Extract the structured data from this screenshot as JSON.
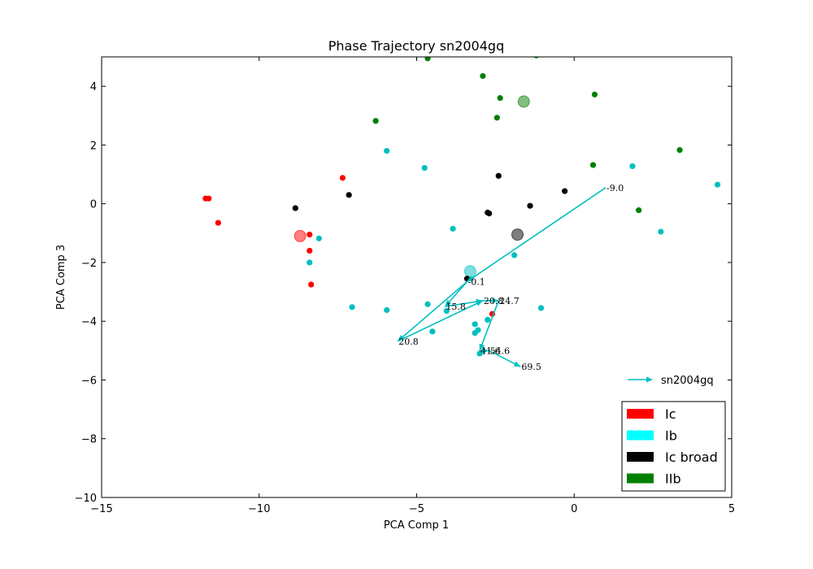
{
  "chart_data": {
    "type": "scatter",
    "title": "Phase Trajectory sn2004gq",
    "xlabel": "PCA Comp 1",
    "ylabel": "PCA Comp 3",
    "xlim": [
      -15,
      5
    ],
    "ylim": [
      -10,
      5
    ],
    "xticks": [
      -15,
      -10,
      -5,
      0,
      5
    ],
    "yticks": [
      -10,
      -8,
      -6,
      -4,
      -2,
      0,
      2,
      4
    ],
    "xtick_labels": [
      "−15",
      "−10",
      "−5",
      "0",
      "5"
    ],
    "ytick_labels": [
      "−10",
      "−8",
      "−6",
      "−4",
      "−2",
      "0",
      "2",
      "4"
    ],
    "grid": false,
    "series": [
      {
        "name": "Ic",
        "color": "#ff0000",
        "points": [
          [
            -11.7,
            0.18
          ],
          [
            -11.6,
            0.18
          ],
          [
            -11.3,
            -0.65
          ],
          [
            -7.35,
            0.88
          ],
          [
            -8.4,
            -1.05
          ],
          [
            -8.4,
            -1.6
          ],
          [
            -8.35,
            -2.75
          ],
          [
            -2.6,
            -3.75
          ]
        ],
        "centroid": [
          -8.7,
          -1.1
        ]
      },
      {
        "name": "Ib",
        "color": "#00bfbf",
        "points": [
          [
            -5.95,
            1.8
          ],
          [
            -4.75,
            1.22
          ],
          [
            -8.1,
            -1.18
          ],
          [
            -8.4,
            -2.0
          ],
          [
            -3.85,
            -0.85
          ],
          [
            -1.9,
            -1.75
          ],
          [
            -7.05,
            -3.52
          ],
          [
            -5.95,
            -3.62
          ],
          [
            -4.65,
            -3.42
          ],
          [
            -4.05,
            -3.65
          ],
          [
            -4.5,
            -4.35
          ],
          [
            -3.15,
            -4.1
          ],
          [
            -3.15,
            -4.4
          ],
          [
            -3.05,
            -4.3
          ],
          [
            -2.75,
            -3.95
          ],
          [
            -3.0,
            -5.1
          ],
          [
            -1.05,
            -3.55
          ],
          [
            1.85,
            1.28
          ],
          [
            2.75,
            -0.95
          ],
          [
            4.55,
            0.65
          ]
        ],
        "centroid": [
          -3.3,
          -2.3
        ]
      },
      {
        "name": "Ic broad",
        "color": "#000000",
        "points": [
          [
            -8.85,
            -0.15
          ],
          [
            -7.15,
            0.3
          ],
          [
            -2.4,
            0.95
          ],
          [
            -2.75,
            -0.3
          ],
          [
            -2.7,
            -0.33
          ],
          [
            -1.4,
            -0.07
          ],
          [
            -0.3,
            0.43
          ],
          [
            -3.4,
            -2.55
          ]
        ],
        "centroid": [
          -1.8,
          -1.05
        ]
      },
      {
        "name": "IIb",
        "color": "#007f00",
        "points": [
          [
            -4.65,
            4.95
          ],
          [
            -1.2,
            5.05
          ],
          [
            -2.9,
            4.35
          ],
          [
            -6.3,
            2.82
          ],
          [
            -2.35,
            3.6
          ],
          [
            -2.45,
            2.93
          ],
          [
            0.65,
            3.72
          ],
          [
            0.6,
            1.32
          ],
          [
            3.35,
            1.83
          ],
          [
            2.05,
            -0.22
          ]
        ],
        "centroid": [
          -1.6,
          3.48
        ]
      }
    ],
    "trajectory": {
      "name": "sn2004gq",
      "color": "#00bfbf",
      "points": [
        {
          "x": 1.0,
          "y": 0.55,
          "label": "-9.0"
        },
        {
          "x": -3.4,
          "y": -2.65,
          "label": "-0.1"
        },
        {
          "x": -4.1,
          "y": -3.5,
          "label": "15.8"
        },
        {
          "x": -2.9,
          "y": -3.3,
          "label": "20.8"
        },
        {
          "x": -2.4,
          "y": -3.3,
          "label": "24.7"
        },
        {
          "x": -3.0,
          "y": -5.0,
          "label": "41.6"
        },
        {
          "x": -2.7,
          "y": -5.0,
          "label": "54.6"
        },
        {
          "x": -1.7,
          "y": -5.55,
          "label": "69.5"
        }
      ],
      "side_branch": [
        {
          "x": -5.6,
          "y": -4.68,
          "label": "20.8"
        }
      ]
    },
    "legend": {
      "placement": "lower-right",
      "entries": [
        {
          "label": "Ic",
          "color": "#ff0000"
        },
        {
          "label": "Ib",
          "color": "#00ffff"
        },
        {
          "label": "Ic broad",
          "color": "#000000"
        },
        {
          "label": "IIb",
          "color": "#008000"
        }
      ],
      "trajectory_label": "sn2004gq"
    }
  }
}
